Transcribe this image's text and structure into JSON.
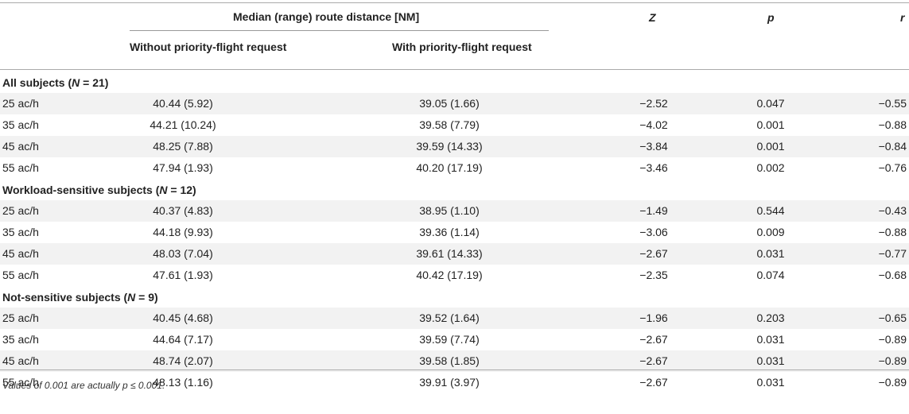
{
  "header": {
    "group_title": "Median (range) route distance [NM]",
    "col_without": "Without priority-flight request",
    "col_with": "With priority-flight request",
    "col_z": "Z",
    "col_p": "p",
    "col_r": "r"
  },
  "groups": [
    {
      "title_prefix": "All subjects (",
      "title_n": "N",
      "title_suffix": " = 21)",
      "rows": [
        {
          "label": "25 ac/h",
          "without": "40.44 (5.92)",
          "with": "39.05 (1.66)",
          "z": "−2.52",
          "p": "0.047",
          "r": "−0.55"
        },
        {
          "label": "35 ac/h",
          "without": "44.21 (10.24)",
          "with": "39.58 (7.79)",
          "z": "−4.02",
          "p": "0.001",
          "r": "−0.88"
        },
        {
          "label": "45 ac/h",
          "without": "48.25 (7.88)",
          "with": "39.59 (14.33)",
          "z": "−3.84",
          "p": "0.001",
          "r": "−0.84"
        },
        {
          "label": "55 ac/h",
          "without": "47.94 (1.93)",
          "with": "40.20 (17.19)",
          "z": "−3.46",
          "p": "0.002",
          "r": "−0.76"
        }
      ]
    },
    {
      "title_prefix": "Workload-sensitive subjects (",
      "title_n": "N",
      "title_suffix": " = 12)",
      "rows": [
        {
          "label": "25 ac/h",
          "without": "40.37 (4.83)",
          "with": "38.95 (1.10)",
          "z": "−1.49",
          "p": "0.544",
          "r": "−0.43"
        },
        {
          "label": "35 ac/h",
          "without": "44.18 (9.93)",
          "with": "39.36 (1.14)",
          "z": "−3.06",
          "p": "0.009",
          "r": "−0.88"
        },
        {
          "label": "45 ac/h",
          "without": "48.03 (7.04)",
          "with": "39.61 (14.33)",
          "z": "−2.67",
          "p": "0.031",
          "r": "−0.77"
        },
        {
          "label": "55 ac/h",
          "without": "47.61 (1.93)",
          "with": "40.42 (17.19)",
          "z": "−2.35",
          "p": "0.074",
          "r": "−0.68"
        }
      ]
    },
    {
      "title_prefix": "Not-sensitive subjects (",
      "title_n": "N",
      "title_suffix": " = 9)",
      "rows": [
        {
          "label": "25 ac/h",
          "without": "40.45 (4.68)",
          "with": "39.52 (1.64)",
          "z": "−1.96",
          "p": "0.203",
          "r": "−0.65"
        },
        {
          "label": "35 ac/h",
          "without": "44.64 (7.17)",
          "with": "39.59 (7.74)",
          "z": "−2.67",
          "p": "0.031",
          "r": "−0.89"
        },
        {
          "label": "45 ac/h",
          "without": "48.74 (2.07)",
          "with": "39.58 (1.85)",
          "z": "−2.67",
          "p": "0.031",
          "r": "−0.89"
        },
        {
          "label": "55 ac/h",
          "without": "48.13 (1.16)",
          "with": "39.91 (3.97)",
          "z": "−2.67",
          "p": "0.031",
          "r": "−0.89"
        }
      ]
    }
  ],
  "footnote": "Values of 0.001 are actually p ≤ 0.001."
}
